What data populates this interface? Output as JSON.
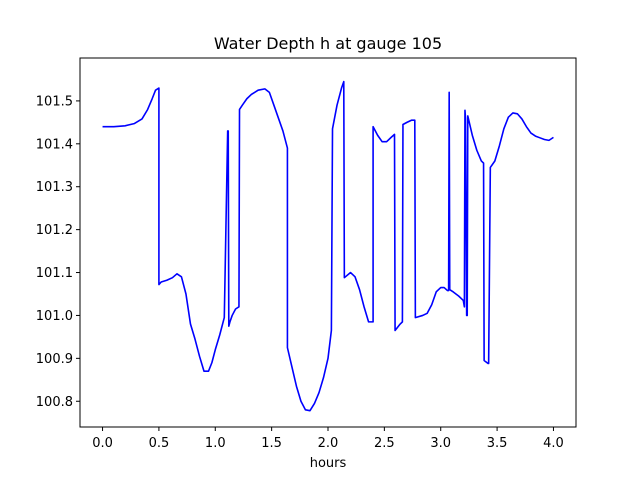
{
  "chart_data": {
    "type": "line",
    "title": "Water Depth h at gauge 105",
    "xlabel": "hours",
    "ylabel": "",
    "xlim": [
      -0.2,
      4.2
    ],
    "ylim": [
      100.74,
      101.6
    ],
    "xticks": [
      0.0,
      0.5,
      1.0,
      1.5,
      2.0,
      2.5,
      3.0,
      3.5,
      4.0
    ],
    "xtick_labels": [
      "0.0",
      "0.5",
      "1.0",
      "1.5",
      "2.0",
      "2.5",
      "3.0",
      "3.5",
      "4.0"
    ],
    "yticks": [
      100.8,
      100.9,
      101.0,
      101.1,
      101.2,
      101.3,
      101.4,
      101.5
    ],
    "ytick_labels": [
      "100.8",
      "100.9",
      "101.0",
      "101.1",
      "101.2",
      "101.3",
      "101.4",
      "101.5"
    ],
    "grid": false,
    "series": [
      {
        "color": "#0000ff",
        "x": [
          0.0,
          0.1,
          0.2,
          0.28,
          0.35,
          0.4,
          0.44,
          0.47,
          0.5,
          0.5,
          0.52,
          0.57,
          0.62,
          0.66,
          0.7,
          0.74,
          0.78,
          0.82,
          0.86,
          0.9,
          0.94,
          0.97,
          1.0,
          1.04,
          1.08,
          1.11,
          1.115,
          1.12,
          1.13,
          1.15,
          1.18,
          1.21,
          1.215,
          1.24,
          1.28,
          1.32,
          1.38,
          1.44,
          1.48,
          1.52,
          1.56,
          1.6,
          1.64,
          1.64,
          1.68,
          1.72,
          1.76,
          1.8,
          1.84,
          1.88,
          1.92,
          1.96,
          2.0,
          2.03,
          2.04,
          2.08,
          2.12,
          2.14,
          2.145,
          2.2,
          2.24,
          2.28,
          2.32,
          2.36,
          2.4,
          2.4,
          2.44,
          2.48,
          2.52,
          2.56,
          2.59,
          2.595,
          2.64,
          2.66,
          2.665,
          2.7,
          2.74,
          2.77,
          2.775,
          2.84,
          2.88,
          2.92,
          2.96,
          3.0,
          3.03,
          3.06,
          3.07,
          3.075,
          3.08,
          3.11,
          3.16,
          3.2,
          3.21,
          3.215,
          3.22,
          3.23,
          3.235,
          3.24,
          3.28,
          3.32,
          3.36,
          3.38,
          3.385,
          3.42,
          3.425,
          3.44,
          3.48,
          3.52,
          3.56,
          3.6,
          3.64,
          3.68,
          3.72,
          3.76,
          3.8,
          3.84,
          3.88,
          3.92,
          3.96,
          4.0
        ],
        "y": [
          101.44,
          101.44,
          101.442,
          101.447,
          101.458,
          101.48,
          101.505,
          101.525,
          101.53,
          101.072,
          101.078,
          101.082,
          101.088,
          101.097,
          101.09,
          101.05,
          100.98,
          100.945,
          100.905,
          100.87,
          100.87,
          100.89,
          100.92,
          100.955,
          100.995,
          101.43,
          101.43,
          100.975,
          100.985,
          101.0,
          101.015,
          101.02,
          101.48,
          101.49,
          101.505,
          101.515,
          101.525,
          101.528,
          101.52,
          101.49,
          101.46,
          101.43,
          101.39,
          100.925,
          100.88,
          100.835,
          100.8,
          100.78,
          100.778,
          100.795,
          100.82,
          100.855,
          100.9,
          100.965,
          101.435,
          101.49,
          101.53,
          101.545,
          101.088,
          101.1,
          101.09,
          101.06,
          101.02,
          100.985,
          100.985,
          101.44,
          101.42,
          101.405,
          101.405,
          101.415,
          101.422,
          100.965,
          100.98,
          100.985,
          101.445,
          101.45,
          101.455,
          101.455,
          100.995,
          101.0,
          101.005,
          101.025,
          101.055,
          101.065,
          101.065,
          101.058,
          101.058,
          101.52,
          101.06,
          101.055,
          101.045,
          101.035,
          101.02,
          101.478,
          101.46,
          101.0,
          101.0,
          101.465,
          101.42,
          101.385,
          101.36,
          101.355,
          100.895,
          100.888,
          100.888,
          101.345,
          101.36,
          101.395,
          101.435,
          101.462,
          101.472,
          101.47,
          101.458,
          101.44,
          101.425,
          101.418,
          101.414,
          101.41,
          101.408,
          101.415
        ]
      }
    ]
  }
}
